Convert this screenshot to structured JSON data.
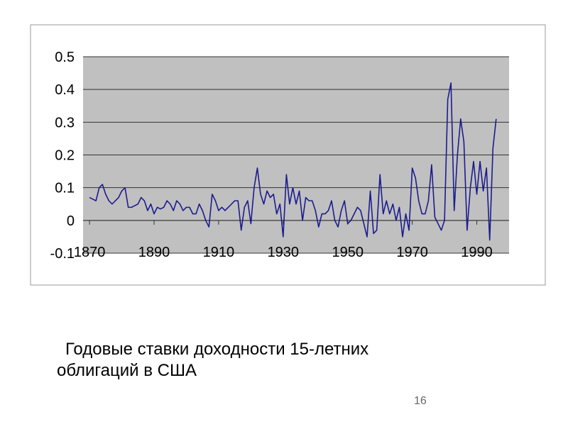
{
  "chart_data": {
    "type": "line",
    "x": [
      1870,
      1871,
      1872,
      1873,
      1874,
      1875,
      1876,
      1877,
      1878,
      1879,
      1880,
      1881,
      1882,
      1883,
      1884,
      1885,
      1886,
      1887,
      1888,
      1889,
      1890,
      1891,
      1892,
      1893,
      1894,
      1895,
      1896,
      1897,
      1898,
      1899,
      1900,
      1901,
      1902,
      1903,
      1904,
      1905,
      1906,
      1907,
      1908,
      1909,
      1910,
      1911,
      1912,
      1913,
      1914,
      1915,
      1916,
      1917,
      1918,
      1919,
      1920,
      1921,
      1922,
      1923,
      1924,
      1925,
      1926,
      1927,
      1928,
      1929,
      1930,
      1931,
      1932,
      1933,
      1934,
      1935,
      1936,
      1937,
      1938,
      1939,
      1940,
      1941,
      1942,
      1943,
      1944,
      1945,
      1946,
      1947,
      1948,
      1949,
      1950,
      1951,
      1952,
      1953,
      1954,
      1955,
      1956,
      1957,
      1958,
      1959,
      1960,
      1961,
      1962,
      1963,
      1964,
      1965,
      1966,
      1967,
      1968,
      1969,
      1970,
      1971,
      1972,
      1973,
      1974,
      1975,
      1976,
      1977,
      1978,
      1979,
      1980,
      1981,
      1982,
      1983,
      1984,
      1985,
      1986,
      1987,
      1988,
      1989,
      1990,
      1991,
      1992,
      1993,
      1994,
      1995,
      1996
    ],
    "series": [
      {
        "color": "#1c1c8f",
        "values": [
          0.07,
          0.065,
          0.06,
          0.1,
          0.11,
          0.08,
          0.06,
          0.05,
          0.06,
          0.07,
          0.09,
          0.1,
          0.04,
          0.04,
          0.045,
          0.05,
          0.07,
          0.06,
          0.03,
          0.05,
          0.02,
          0.04,
          0.035,
          0.04,
          0.06,
          0.05,
          0.03,
          0.06,
          0.05,
          0.03,
          0.04,
          0.04,
          0.02,
          0.02,
          0.05,
          0.03,
          0.0,
          -0.02,
          0.08,
          0.06,
          0.03,
          0.04,
          0.03,
          0.04,
          0.05,
          0.06,
          0.06,
          -0.03,
          0.04,
          0.06,
          -0.01,
          0.1,
          0.16,
          0.08,
          0.05,
          0.09,
          0.07,
          0.08,
          0.02,
          0.05,
          -0.05,
          0.14,
          0.05,
          0.1,
          0.05,
          0.09,
          0.0,
          0.07,
          0.06,
          0.06,
          0.03,
          -0.02,
          0.02,
          0.02,
          0.03,
          0.06,
          0.0,
          -0.02,
          0.03,
          0.06,
          -0.01,
          0.0,
          0.02,
          0.04,
          0.03,
          -0.01,
          -0.05,
          0.09,
          -0.04,
          -0.03,
          0.14,
          0.02,
          0.06,
          0.02,
          0.05,
          0.0,
          0.04,
          -0.05,
          0.02,
          -0.03,
          0.16,
          0.13,
          0.06,
          0.02,
          0.02,
          0.06,
          0.17,
          0.01,
          -0.01,
          -0.03,
          0.0,
          0.37,
          0.42,
          0.03,
          0.2,
          0.31,
          0.24,
          -0.03,
          0.1,
          0.18,
          0.08,
          0.18,
          0.09,
          0.16,
          -0.06,
          0.22,
          0.31
        ]
      }
    ],
    "xlim": [
      1868,
      2000
    ],
    "xticks": [
      1870,
      1890,
      1910,
      1930,
      1950,
      1970,
      1990
    ],
    "ylim": [
      -0.1,
      0.5
    ],
    "yticks": [
      -0.1,
      0,
      0.1,
      0.2,
      0.3,
      0.4,
      0.5
    ],
    "grid": true
  },
  "caption": [
    "Годовые ставки доходности 15-летних",
    "облигаций в США"
  ],
  "page_number": "16"
}
